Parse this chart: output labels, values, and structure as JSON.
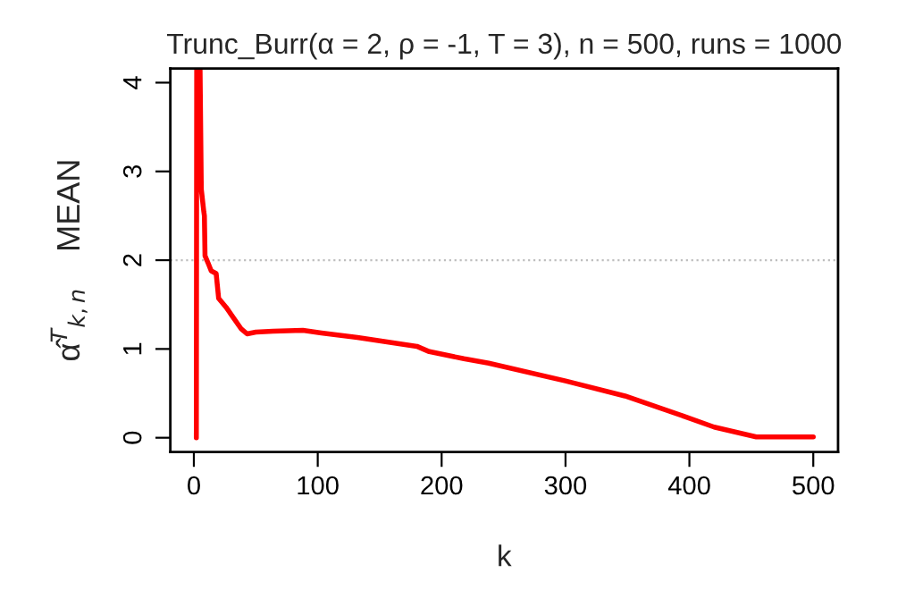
{
  "chart_data": {
    "type": "line",
    "title": "Trunc_Burr(α = 2, ρ = -1, T = 3), n = 500, runs = 1000",
    "xlabel": "k",
    "ylabel": "α̂$^{T}$$_{k,n}$    MEAN",
    "x": [
      2,
      2.3,
      3,
      5,
      6,
      8,
      8.5,
      9,
      12,
      14,
      18,
      20,
      26,
      31,
      38,
      43,
      50,
      64,
      88,
      103,
      132,
      180,
      190,
      218,
      238,
      300,
      348,
      396,
      420,
      454,
      500
    ],
    "series": [
      {
        "color": "#ff0000",
        "values": [
          0,
          4.15,
          4.15,
          4.15,
          2.8,
          2.55,
          2.5,
          2.05,
          1.95,
          1.88,
          1.85,
          1.57,
          1.47,
          1.37,
          1.23,
          1.17,
          1.19,
          1.2,
          1.21,
          1.18,
          1.13,
          1.03,
          0.97,
          0.89,
          0.84,
          0.64,
          0.47,
          0.24,
          0.12,
          0.01,
          0.01
        ]
      }
    ],
    "xlim": [
      -19,
      520
    ],
    "ylim": [
      -0.16,
      4.16
    ],
    "xticks": [
      0,
      100,
      200,
      300,
      400,
      500
    ],
    "yticks": [
      0,
      1,
      2,
      3,
      4
    ],
    "ref_lines": [
      {
        "axis": "y",
        "value": 2,
        "color": "#bebebe",
        "line_style": "dotted"
      }
    ],
    "grid": false,
    "legend": false,
    "marker": "none",
    "line_style": "solid"
  }
}
